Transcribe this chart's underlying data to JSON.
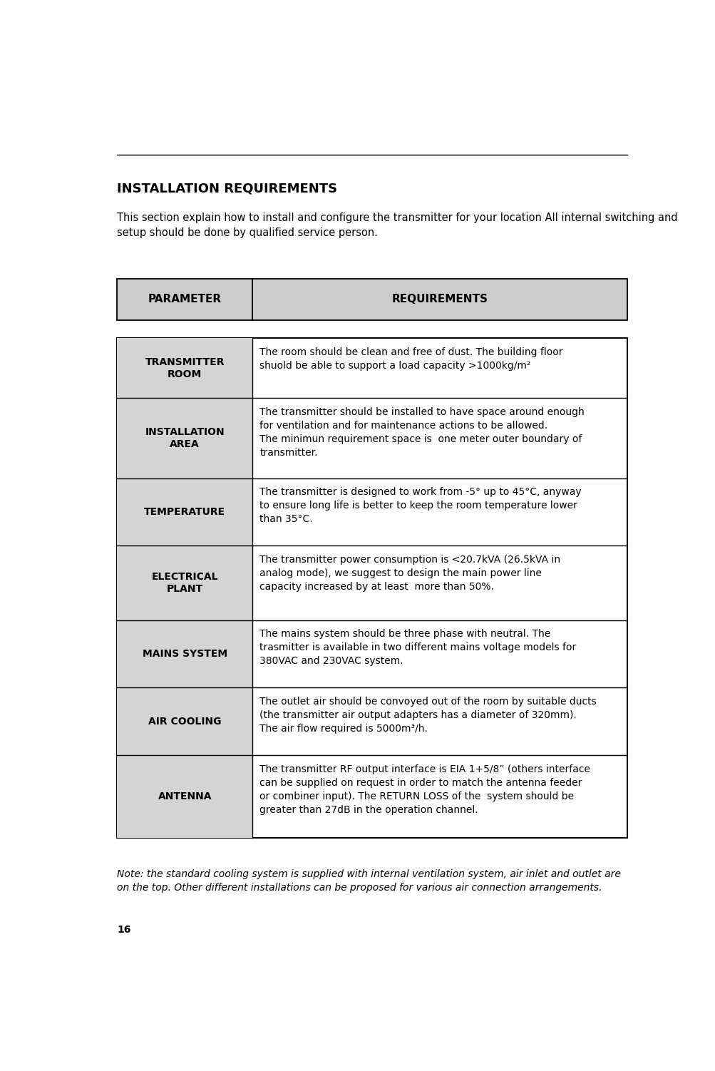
{
  "page_number": "16",
  "title": "INSTALLATION REQUIREMENTS",
  "intro_text": "This section explain how to install and configure the transmitter for your location All internal switching and\nsetup should be done by qualified service person.",
  "header_param": "PARAMETER",
  "header_req": "REQUIREMENTS",
  "rows": [
    {
      "param": "TRANSMITTER\nROOM",
      "req_text": "The room should be clean and free of dust. The building floor\nshuold be able to support a load capacity >1000kg/m²"
    },
    {
      "param": "INSTALLATION\nAREA",
      "req_text": "The transmitter should be installed to have space around enough\nfor ventilation and for maintenance actions to be allowed.\nThe minimun requirement space is  one meter outer boundary of\ntransmitter."
    },
    {
      "param": "TEMPERATURE",
      "req_text": "The transmitter is designed to work from -5° up to 45°C, anyway\nto ensure long life is better to keep the room temperature lower\nthan 35°C."
    },
    {
      "param": "ELECTRICAL\nPLANT",
      "req_text": "The transmitter power consumption is <20.7kVA (26.5kVA in\nanalog mode), we suggest to design the main power line\ncapacity increased by at least  more than 50%."
    },
    {
      "param": "MAINS SYSTEM",
      "req_text": "The mains system should be three phase with neutral. The\ntrasmitter is available in two different mains voltage models for\n380VAC and 230VAC system."
    },
    {
      "param": "AIR COOLING",
      "req_text": "The outlet air should be convoyed out of the room by suitable ducts\n(the transmitter air output adapters has a diameter of 320mm).\nThe air flow required is 5000m³/h."
    },
    {
      "param": "ANTENNA",
      "req_text": "The transmitter RF output interface is EIA 1+5/8” (others interface\ncan be supplied on request in order to match the antenna feeder\nor combiner input). The RETURN LOSS of the  system should be\ngreater than 27dB in the operation channel."
    }
  ],
  "note_text": "Note: the standard cooling system is supplied with internal ventilation system, air inlet and outlet are\non the top. Other different installations can be proposed for various air connection arrangements.",
  "bg_color": "#ffffff",
  "header_bg": "#cccccc",
  "cell_left_bg": "#d4d4d4",
  "border_color": "#000000",
  "text_color": "#000000",
  "title_fontsize": 13,
  "intro_fontsize": 10.5,
  "header_fontsize": 11,
  "param_fontsize": 10,
  "req_fontsize": 10,
  "note_fontsize": 10
}
